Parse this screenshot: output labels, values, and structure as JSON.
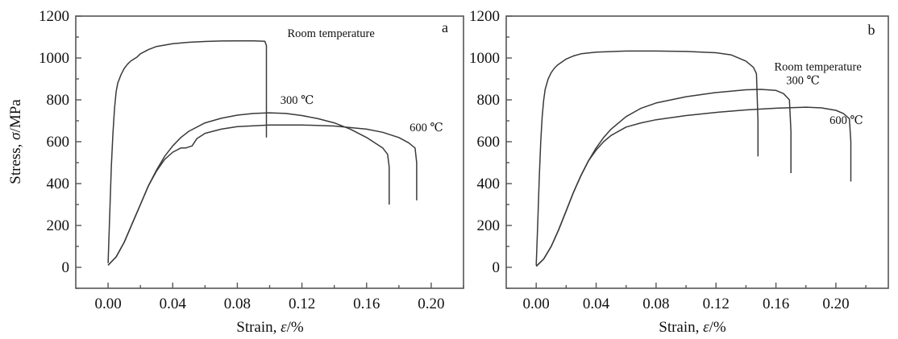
{
  "figure": {
    "y_axis_label": {
      "prefix": "Stress, ",
      "symbol": "σ",
      "suffix": "/MPa"
    },
    "x_axis_label": {
      "prefix": "Strain, ",
      "symbol": "ε",
      "suffix": "/%"
    }
  },
  "chart_data": [
    {
      "type": "line",
      "panel": "a",
      "xlabel": "Strain, ε/%",
      "ylabel": "Stress, σ/MPa",
      "xlim": [
        -0.02,
        0.22
      ],
      "ylim": [
        -100,
        1200
      ],
      "xticks": [
        "0.00",
        "0.04",
        "0.08",
        "0.12",
        "0.16",
        "0.20"
      ],
      "yticks": [
        "0",
        "200",
        "400",
        "600",
        "800",
        "1000",
        "1200"
      ],
      "grid": false,
      "series": [
        {
          "name": "Room temperature",
          "x": [
            0.0,
            0.001,
            0.002,
            0.003,
            0.004,
            0.005,
            0.006,
            0.008,
            0.01,
            0.012,
            0.014,
            0.016,
            0.018,
            0.02,
            0.025,
            0.03,
            0.04,
            0.05,
            0.06,
            0.07,
            0.08,
            0.09,
            0.097,
            0.098,
            0.098
          ],
          "y": [
            20,
            250,
            480,
            640,
            760,
            840,
            880,
            920,
            950,
            970,
            985,
            995,
            1005,
            1020,
            1040,
            1055,
            1068,
            1075,
            1079,
            1081,
            1082,
            1082,
            1080,
            1060,
            620
          ]
        },
        {
          "name": "300 ℃",
          "x": [
            0.0,
            0.005,
            0.01,
            0.015,
            0.02,
            0.025,
            0.03,
            0.035,
            0.04,
            0.045,
            0.05,
            0.06,
            0.07,
            0.08,
            0.09,
            0.1,
            0.11,
            0.12,
            0.13,
            0.14,
            0.15,
            0.16,
            0.17,
            0.173,
            0.174,
            0.174
          ],
          "y": [
            10,
            50,
            120,
            210,
            300,
            390,
            465,
            530,
            580,
            620,
            650,
            690,
            712,
            727,
            735,
            738,
            735,
            725,
            710,
            690,
            660,
            620,
            570,
            540,
            480,
            300
          ]
        },
        {
          "name": "600 ℃",
          "x": [
            0.0,
            0.005,
            0.01,
            0.015,
            0.02,
            0.025,
            0.03,
            0.035,
            0.04,
            0.045,
            0.048,
            0.052,
            0.055,
            0.06,
            0.07,
            0.08,
            0.1,
            0.12,
            0.14,
            0.16,
            0.17,
            0.18,
            0.186,
            0.19,
            0.191,
            0.191
          ],
          "y": [
            10,
            50,
            120,
            210,
            300,
            390,
            460,
            515,
            550,
            570,
            570,
            580,
            615,
            640,
            660,
            672,
            680,
            680,
            675,
            660,
            645,
            620,
            595,
            570,
            500,
            320
          ]
        }
      ],
      "annotations": [
        {
          "text": "Room temperature",
          "x": 0.138,
          "y": 1100
        },
        {
          "text": "300 ℃",
          "x": 0.117,
          "y": 780
        },
        {
          "text": "600 ℃",
          "x": 0.197,
          "y": 650
        }
      ]
    },
    {
      "type": "line",
      "panel": "b",
      "xlabel": "Strain, ε/%",
      "ylabel": "",
      "xlim": [
        -0.02,
        0.235
      ],
      "ylim": [
        -100,
        1200
      ],
      "xticks": [
        "0.00",
        "0.04",
        "0.08",
        "0.12",
        "0.16",
        "0.20"
      ],
      "yticks": [
        "0",
        "200",
        "400",
        "600",
        "800",
        "1000",
        "1200"
      ],
      "grid": false,
      "series": [
        {
          "name": "Room temperature",
          "x": [
            0.0,
            0.001,
            0.002,
            0.003,
            0.004,
            0.005,
            0.006,
            0.008,
            0.01,
            0.012,
            0.014,
            0.016,
            0.018,
            0.02,
            0.025,
            0.03,
            0.04,
            0.06,
            0.08,
            0.1,
            0.12,
            0.13,
            0.14,
            0.145,
            0.147,
            0.148,
            0.148
          ],
          "y": [
            10,
            200,
            420,
            600,
            720,
            800,
            850,
            900,
            930,
            950,
            965,
            975,
            985,
            995,
            1010,
            1020,
            1028,
            1033,
            1033,
            1031,
            1025,
            1015,
            985,
            955,
            925,
            700,
            530
          ]
        },
        {
          "name": "300 ℃",
          "x": [
            0.0,
            0.005,
            0.01,
            0.015,
            0.02,
            0.025,
            0.03,
            0.035,
            0.04,
            0.045,
            0.05,
            0.06,
            0.07,
            0.08,
            0.1,
            0.12,
            0.14,
            0.15,
            0.16,
            0.165,
            0.169,
            0.17,
            0.17
          ],
          "y": [
            5,
            40,
            100,
            180,
            270,
            360,
            440,
            510,
            570,
            620,
            660,
            720,
            760,
            785,
            815,
            835,
            848,
            850,
            845,
            830,
            800,
            650,
            450
          ]
        },
        {
          "name": "600 ℃",
          "x": [
            0.0,
            0.005,
            0.01,
            0.015,
            0.02,
            0.025,
            0.03,
            0.035,
            0.04,
            0.045,
            0.05,
            0.06,
            0.07,
            0.08,
            0.1,
            0.12,
            0.14,
            0.16,
            0.18,
            0.19,
            0.2,
            0.205,
            0.209,
            0.21,
            0.21
          ],
          "y": [
            5,
            40,
            100,
            180,
            270,
            360,
            440,
            510,
            560,
            600,
            630,
            670,
            690,
            705,
            725,
            740,
            752,
            760,
            765,
            762,
            750,
            735,
            710,
            600,
            410
          ]
        }
      ],
      "annotations": [
        {
          "text": "Room temperature",
          "x": 0.188,
          "y": 940
        },
        {
          "text": "300 ℃",
          "x": 0.178,
          "y": 875
        },
        {
          "text": "600 ℃",
          "x": 0.207,
          "y": 685
        }
      ]
    }
  ]
}
